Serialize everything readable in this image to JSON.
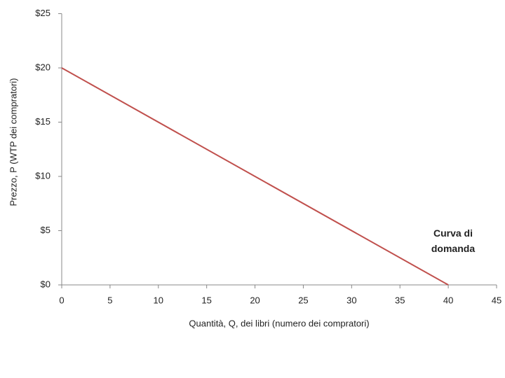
{
  "chart_data": {
    "type": "line",
    "x": [
      0,
      40
    ],
    "series": [
      {
        "name": null,
        "color": "#c0504d",
        "values": [
          20,
          0
        ]
      }
    ],
    "xlabel": "Quantità, Q, dei libri (numero dei compratori)",
    "ylabel": "Prezzo, P (WTP dei compratori)",
    "annotation": "Curva di domanda",
    "xlim": [
      0,
      45
    ],
    "xticks": [
      0,
      5,
      10,
      15,
      20,
      25,
      30,
      35,
      40,
      45
    ],
    "ylim": [
      0,
      25
    ],
    "yticks": [
      {
        "value": 0,
        "label": "$0"
      },
      {
        "value": 5,
        "label": "$5"
      },
      {
        "value": 10,
        "label": "$10"
      },
      {
        "value": 15,
        "label": "$15"
      },
      {
        "value": 20,
        "label": "$20"
      },
      {
        "value": 25,
        "label": "$25"
      }
    ],
    "grid": false
  }
}
